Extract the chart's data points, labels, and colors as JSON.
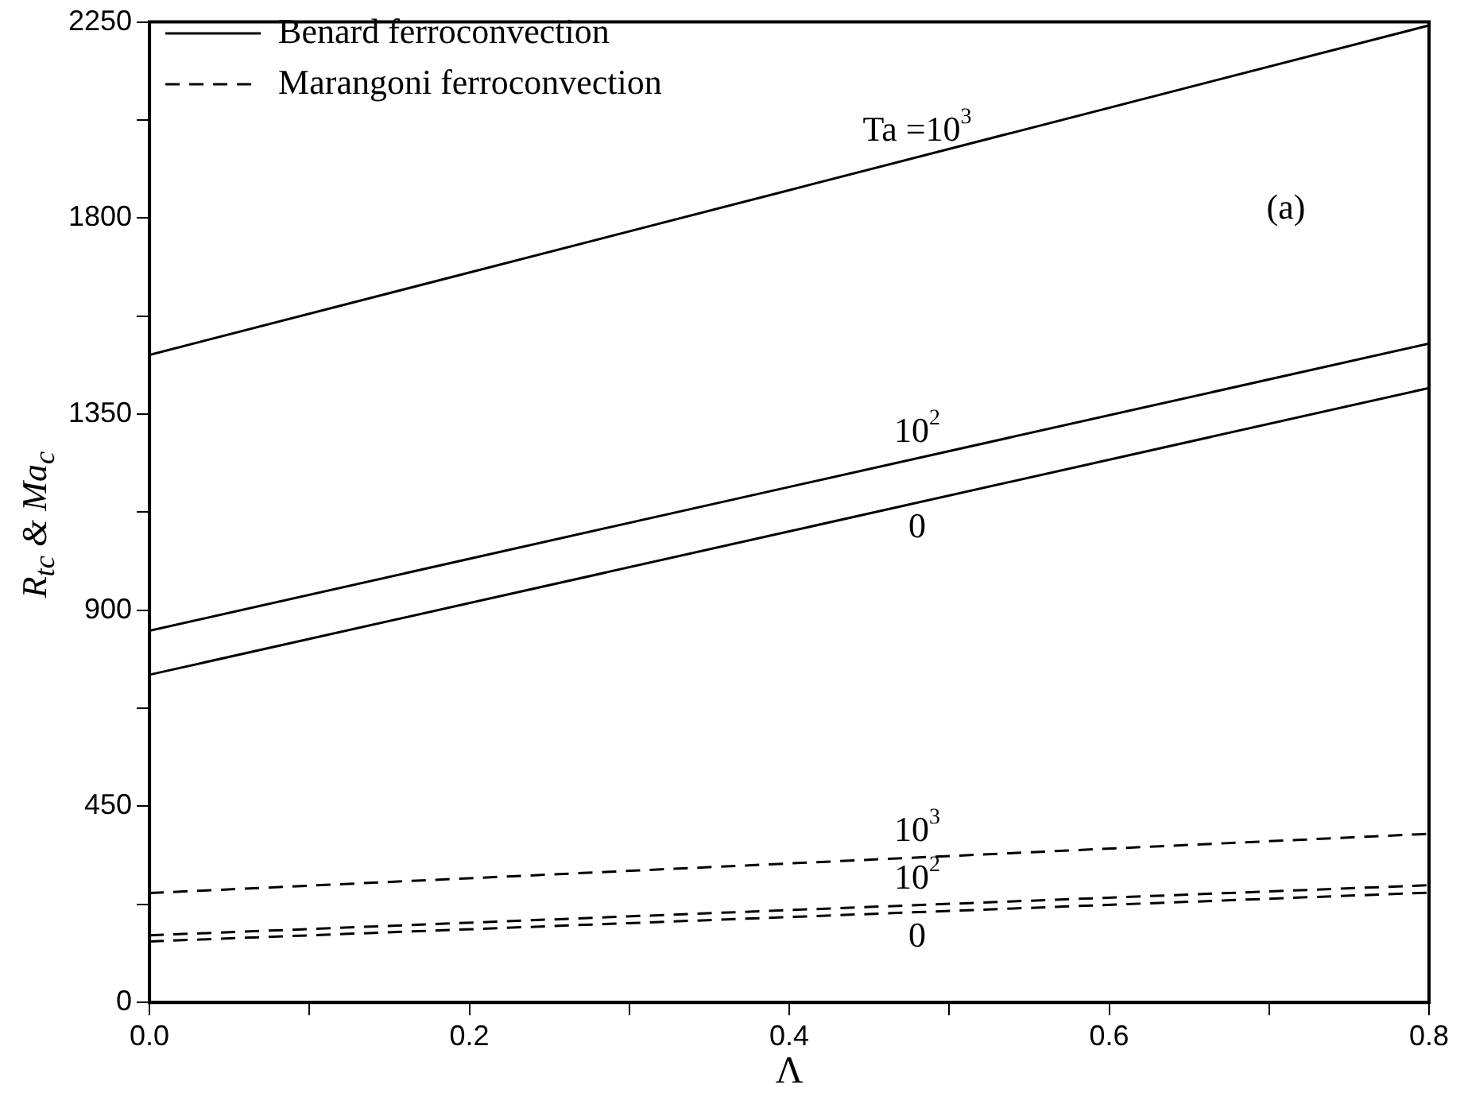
{
  "chart_data": {
    "type": "line",
    "xlabel": "Λ",
    "ylabel": "R$_{tc}$ & Ma$_{c}$",
    "xlim": [
      0,
      0.8
    ],
    "xticks": [
      {
        "value": 0,
        "label": "0.0"
      },
      {
        "value": 0.1,
        "label": null
      },
      {
        "value": 0.2,
        "label": "0.2"
      },
      {
        "value": 0.3,
        "label": null
      },
      {
        "value": 0.4,
        "label": "0.4"
      },
      {
        "value": 0.5,
        "label": null
      },
      {
        "value": 0.6,
        "label": "0.6"
      },
      {
        "value": 0.7,
        "label": null
      },
      {
        "value": 0.8,
        "label": "0.8"
      }
    ],
    "ylim": [
      0,
      2250
    ],
    "yticks": [
      0,
      {
        "value": 225,
        "label": null
      },
      450,
      {
        "value": 675,
        "label": null
      },
      900,
      {
        "value": 1125,
        "label": null
      },
      1350,
      {
        "value": 1575,
        "label": null
      },
      1800,
      {
        "value": 2025,
        "label": null
      },
      2250
    ],
    "x": [
      0,
      0.4,
      0.8
    ],
    "series": [
      {
        "name": "Benard ferroconvection",
        "color": "#000000",
        "line_style": "solid",
        "values": [
          1486,
          1864,
          2242
        ]
      },
      {
        "color": "#000000",
        "line_style": "solid",
        "values": [
          853,
          1183,
          1512
        ]
      },
      {
        "color": "#000000",
        "line_style": "solid",
        "values": [
          752,
          1081,
          1410
        ]
      },
      {
        "name": "Marangoni ferroconvection",
        "color": "#000000",
        "line_style": "dashed",
        "values": [
          251,
          319,
          387
        ]
      },
      {
        "color": "#000000",
        "line_style": "dashed",
        "values": [
          154,
          212,
          269
        ]
      },
      {
        "color": "#000000",
        "line_style": "dashed",
        "values": [
          140,
          196,
          252
        ]
      }
    ],
    "legend": "top left",
    "marker": "none",
    "grid": false,
    "annotations": [
      "Ta =10$^{3}$",
      "10$^{2}$",
      "0",
      "10$^{3}$",
      "10$^{2}$",
      "0",
      "(a)"
    ]
  }
}
